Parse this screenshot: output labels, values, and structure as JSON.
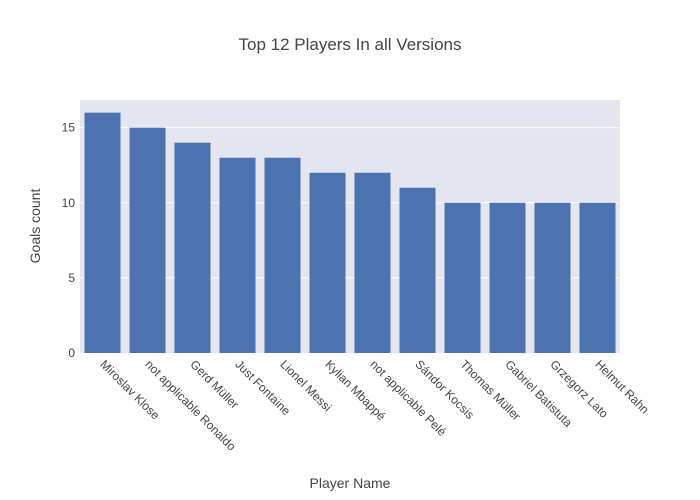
{
  "chart_data": {
    "type": "bar",
    "title": "Top 12 Players In all Versions",
    "xlabel": "Player Name",
    "ylabel": "Goals count",
    "categories": [
      "Miroslav Klose",
      "not applicable Ronaldo",
      "Gerd Müller",
      "Just Fontaine",
      "Lionel Messi",
      "Kylian Mbappé",
      "not applicable Pelé",
      "Sándor Kocsis",
      "Thomas Müller",
      "Gabriel Batistuta",
      "Grzegorz Lato",
      "Helmut Rahn"
    ],
    "values": [
      16,
      15,
      14,
      13,
      13,
      12,
      12,
      11,
      10,
      10,
      10,
      10
    ],
    "yticks": [
      0,
      5,
      10,
      15
    ],
    "ylim": [
      0,
      16.842
    ],
    "grid": true,
    "colors": {
      "bar": "#4c72b0",
      "plot_background": "#e5e5f0",
      "gridline": "#ffffff",
      "text": "#444444"
    }
  }
}
